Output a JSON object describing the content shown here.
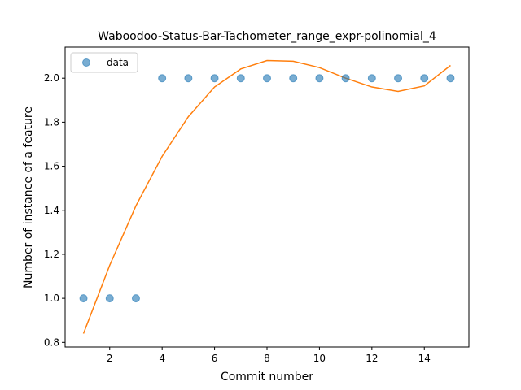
{
  "chart_data": {
    "type": "scatter",
    "title": "Waboodoo-Status-Bar-Tachometer_range_expr-polinomial_4",
    "xlabel": "Commit number",
    "ylabel": "Number of instance of a feature",
    "xlim": [
      0.3,
      15.7
    ],
    "ylim": [
      0.779,
      2.141
    ],
    "xticks": [
      2,
      4,
      6,
      8,
      10,
      12,
      14
    ],
    "yticks": [
      0.8,
      1.0,
      1.2,
      1.4,
      1.6,
      1.8,
      2.0
    ],
    "xtick_labels": [
      "2",
      "4",
      "6",
      "8",
      "10",
      "12",
      "14"
    ],
    "ytick_labels": [
      "0.8",
      "1.0",
      "1.2",
      "1.4",
      "1.6",
      "1.8",
      "2.0"
    ],
    "legend_position": "upper-left",
    "series": [
      {
        "name": "data",
        "kind": "scatter",
        "color": "#1f77b4",
        "x": [
          1,
          2,
          3,
          4,
          5,
          6,
          7,
          8,
          9,
          10,
          11,
          12,
          13,
          14,
          15
        ],
        "y": [
          1.0,
          1.0,
          1.0,
          2.0,
          2.0,
          2.0,
          2.0,
          2.0,
          2.0,
          2.0,
          2.0,
          2.0,
          2.0,
          2.0,
          2.0
        ]
      },
      {
        "kind": "line",
        "color": "#ff7f0e",
        "x": [
          1,
          2,
          3,
          4,
          5,
          6,
          7,
          8,
          9,
          10,
          11,
          12,
          13,
          14,
          15
        ],
        "y": [
          0.84,
          1.15,
          1.42,
          1.645,
          1.825,
          1.96,
          2.042,
          2.08,
          2.077,
          2.048,
          2.0,
          1.96,
          1.94,
          1.965,
          2.058
        ]
      }
    ]
  }
}
